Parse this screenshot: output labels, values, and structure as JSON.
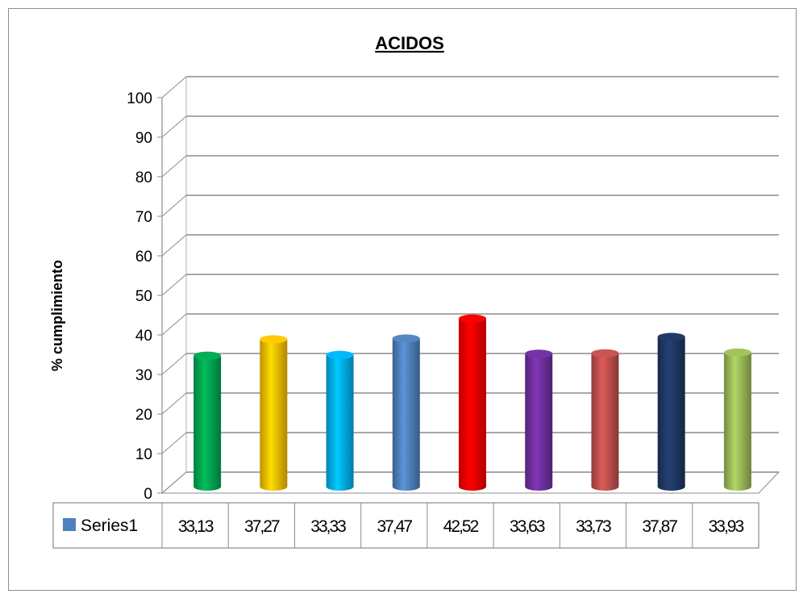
{
  "chart_data": {
    "type": "bar",
    "title": "ACIDOS",
    "xlabel": "",
    "ylabel": "% cumplimiento",
    "ylim": [
      0,
      100
    ],
    "yticks": [
      0,
      10,
      20,
      30,
      40,
      50,
      60,
      70,
      80,
      90,
      100
    ],
    "grid": true,
    "legend": "data-table-left",
    "series": [
      {
        "name": "Series1",
        "color": "#4f81bd"
      }
    ],
    "table_labels": [
      "33,13",
      "37,27",
      "33,33",
      "37,47",
      "42,52",
      "33,63",
      "33,73",
      "37,87",
      "33,93"
    ],
    "values": [
      33.13,
      37.27,
      33.33,
      37.47,
      42.52,
      33.63,
      33.73,
      37.87,
      33.93
    ],
    "bar_colors": [
      "#00a651",
      "#ffc000",
      "#00b0f0",
      "#4f81bd",
      "#ff0000",
      "#7030a0",
      "#c0504d",
      "#1f3864",
      "#9bbb59"
    ]
  }
}
